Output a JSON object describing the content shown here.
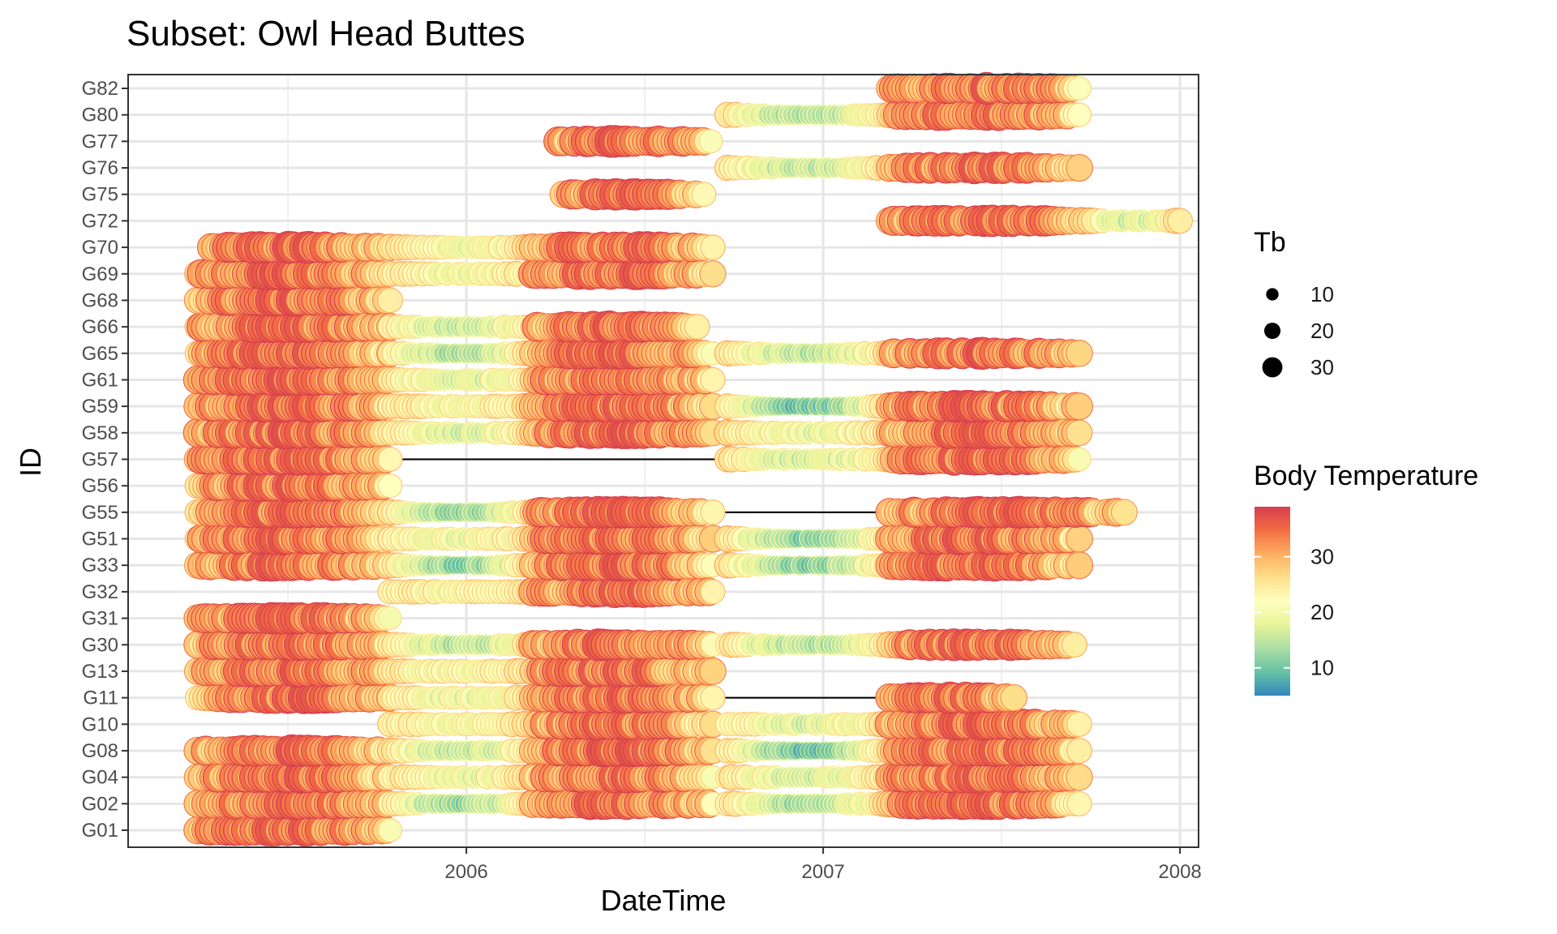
{
  "chart_data": {
    "type": "scatter",
    "title": "Subset: Owl Head Buttes",
    "xlabel": "DateTime",
    "ylabel": "ID",
    "x_ticks": [
      "2006",
      "2007",
      "2008"
    ],
    "xlim": [
      "2005-01-20",
      "2008-01-20"
    ],
    "y_categories": [
      "G01",
      "G02",
      "G04",
      "G08",
      "G10",
      "G11",
      "G13",
      "G30",
      "G31",
      "G32",
      "G33",
      "G51",
      "G55",
      "G56",
      "G57",
      "G58",
      "G59",
      "G61",
      "G65",
      "G66",
      "G68",
      "G69",
      "G70",
      "G72",
      "G75",
      "G76",
      "G77",
      "G80",
      "G82"
    ],
    "grid": true,
    "legend_position": "right",
    "size_legend": {
      "title": "Tb",
      "values": [
        10,
        20,
        30
      ]
    },
    "color_legend": {
      "title": "Body Temperature",
      "ticks": [
        10,
        20,
        30
      ],
      "range": [
        5,
        39
      ],
      "palette": [
        "#3288bd",
        "#66c2a5",
        "#abdda4",
        "#e6f598",
        "#ffffbf",
        "#fee08b",
        "#fdae61",
        "#f46d43",
        "#d53e4f"
      ]
    },
    "series": [
      {
        "id": "G01",
        "segments": [
          {
            "start": "2005-04-01",
            "end": "2005-10-15",
            "profile": "summer"
          }
        ],
        "gaps": []
      },
      {
        "id": "G02",
        "segments": [
          {
            "start": "2005-04-01",
            "end": "2005-10-15",
            "profile": "summer"
          },
          {
            "start": "2005-10-15",
            "end": "2006-03-10",
            "profile": "winter",
            "min": 12
          },
          {
            "start": "2006-03-10",
            "end": "2006-09-10",
            "profile": "summer"
          },
          {
            "start": "2006-09-25",
            "end": "2007-03-10",
            "profile": "winter",
            "min": 13
          },
          {
            "start": "2007-03-10",
            "end": "2007-09-20",
            "profile": "summer"
          }
        ],
        "gaps": [
          [
            "2006-09-10",
            "2006-09-25"
          ]
        ]
      },
      {
        "id": "G04",
        "segments": [
          {
            "start": "2005-04-01",
            "end": "2005-10-15",
            "profile": "summer"
          },
          {
            "start": "2005-10-15",
            "end": "2006-03-10",
            "profile": "winter",
            "min": 18
          },
          {
            "start": "2006-03-10",
            "end": "2006-09-10",
            "profile": "summer"
          },
          {
            "start": "2006-09-25",
            "end": "2007-03-10",
            "profile": "winter",
            "min": 16
          },
          {
            "start": "2007-03-10",
            "end": "2007-09-20",
            "profile": "summer"
          }
        ],
        "gaps": [
          [
            "2006-09-10",
            "2006-09-25"
          ]
        ]
      },
      {
        "id": "G08",
        "segments": [
          {
            "start": "2005-04-01",
            "end": "2005-10-15",
            "profile": "summer"
          },
          {
            "start": "2005-10-15",
            "end": "2006-03-10",
            "profile": "winter",
            "min": 14
          },
          {
            "start": "2006-03-10",
            "end": "2006-09-10",
            "profile": "summer"
          },
          {
            "start": "2006-09-25",
            "end": "2007-03-10",
            "profile": "winter",
            "min": 9
          },
          {
            "start": "2007-03-10",
            "end": "2007-09-20",
            "profile": "summer"
          }
        ],
        "gaps": [
          [
            "2006-09-10",
            "2006-09-25"
          ]
        ]
      },
      {
        "id": "G10",
        "segments": [
          {
            "start": "2005-10-15",
            "end": "2006-03-10",
            "profile": "winter",
            "min": 20
          },
          {
            "start": "2006-03-10",
            "end": "2006-09-10",
            "profile": "summer"
          },
          {
            "start": "2006-09-25",
            "end": "2007-03-10",
            "profile": "winter",
            "min": 17
          },
          {
            "start": "2007-03-10",
            "end": "2007-09-20",
            "profile": "summer"
          }
        ],
        "gaps": []
      },
      {
        "id": "G11",
        "segments": [
          {
            "start": "2005-04-01",
            "end": "2005-10-15",
            "profile": "summer"
          },
          {
            "start": "2005-10-15",
            "end": "2006-03-10",
            "profile": "winter",
            "min": 18
          },
          {
            "start": "2006-03-10",
            "end": "2006-09-10",
            "profile": "summer"
          },
          {
            "start": "2007-03-10",
            "end": "2007-07-15",
            "profile": "summer"
          }
        ],
        "gaps": [
          [
            "2006-09-10",
            "2007-03-10"
          ]
        ]
      },
      {
        "id": "G13",
        "segments": [
          {
            "start": "2005-04-01",
            "end": "2005-10-15",
            "profile": "summer"
          },
          {
            "start": "2005-10-15",
            "end": "2006-03-10",
            "profile": "winter",
            "min": 20
          },
          {
            "start": "2006-03-10",
            "end": "2006-09-10",
            "profile": "summer"
          }
        ],
        "gaps": []
      },
      {
        "id": "G30",
        "segments": [
          {
            "start": "2005-04-01",
            "end": "2005-10-15",
            "profile": "summer"
          },
          {
            "start": "2005-10-15",
            "end": "2006-03-10",
            "profile": "winter",
            "min": 14
          },
          {
            "start": "2006-03-10",
            "end": "2006-09-10",
            "profile": "summer"
          },
          {
            "start": "2006-09-25",
            "end": "2007-03-10",
            "profile": "winter",
            "min": 13
          },
          {
            "start": "2007-03-10",
            "end": "2007-09-15",
            "profile": "summer"
          }
        ],
        "gaps": [
          [
            "2006-09-10",
            "2006-09-25"
          ]
        ]
      },
      {
        "id": "G31",
        "segments": [
          {
            "start": "2005-04-01",
            "end": "2005-10-15",
            "profile": "summer"
          }
        ],
        "gaps": []
      },
      {
        "id": "G32",
        "segments": [
          {
            "start": "2005-10-15",
            "end": "2006-03-10",
            "profile": "winter",
            "min": 20
          },
          {
            "start": "2006-03-10",
            "end": "2006-09-10",
            "profile": "summer"
          }
        ],
        "gaps": []
      },
      {
        "id": "G33",
        "segments": [
          {
            "start": "2005-04-01",
            "end": "2005-10-15",
            "profile": "summer"
          },
          {
            "start": "2005-10-15",
            "end": "2006-03-10",
            "profile": "winter",
            "min": 11
          },
          {
            "start": "2006-03-10",
            "end": "2006-09-10",
            "profile": "summer"
          },
          {
            "start": "2006-09-25",
            "end": "2007-03-10",
            "profile": "winter",
            "min": 11
          },
          {
            "start": "2007-03-10",
            "end": "2007-09-20",
            "profile": "summer"
          }
        ],
        "gaps": [
          [
            "2006-09-10",
            "2006-09-25"
          ]
        ]
      },
      {
        "id": "G51",
        "segments": [
          {
            "start": "2005-04-01",
            "end": "2005-10-15",
            "profile": "summer"
          },
          {
            "start": "2005-10-15",
            "end": "2006-03-10",
            "profile": "winter",
            "min": 18
          },
          {
            "start": "2006-03-10",
            "end": "2006-09-10",
            "profile": "summer"
          },
          {
            "start": "2006-09-25",
            "end": "2007-03-10",
            "profile": "winter",
            "min": 11
          },
          {
            "start": "2007-03-10",
            "end": "2007-09-20",
            "profile": "summer"
          }
        ],
        "gaps": [
          [
            "2006-09-10",
            "2006-09-25"
          ]
        ]
      },
      {
        "id": "G55",
        "segments": [
          {
            "start": "2005-04-01",
            "end": "2005-10-15",
            "profile": "summer"
          },
          {
            "start": "2005-10-15",
            "end": "2006-03-10",
            "profile": "winter",
            "min": 12
          },
          {
            "start": "2006-03-10",
            "end": "2006-09-10",
            "profile": "summer"
          },
          {
            "start": "2007-03-10",
            "end": "2007-11-05",
            "profile": "summer"
          }
        ],
        "gaps": [
          [
            "2006-09-10",
            "2007-03-10"
          ]
        ]
      },
      {
        "id": "G56",
        "segments": [
          {
            "start": "2005-04-01",
            "end": "2005-10-15",
            "profile": "summer"
          }
        ],
        "gaps": []
      },
      {
        "id": "G57",
        "segments": [
          {
            "start": "2005-04-01",
            "end": "2005-10-15",
            "profile": "summer"
          },
          {
            "start": "2006-09-25",
            "end": "2007-03-10",
            "profile": "winter",
            "min": 16
          },
          {
            "start": "2007-03-10",
            "end": "2007-09-20",
            "profile": "summer"
          }
        ],
        "gaps": [
          [
            "2005-10-15",
            "2006-09-25"
          ]
        ]
      },
      {
        "id": "G58",
        "segments": [
          {
            "start": "2005-04-01",
            "end": "2005-10-15",
            "profile": "summer"
          },
          {
            "start": "2005-10-15",
            "end": "2006-03-10",
            "profile": "winter",
            "min": 16
          },
          {
            "start": "2006-03-10",
            "end": "2006-09-10",
            "profile": "summer"
          },
          {
            "start": "2006-09-25",
            "end": "2007-03-10",
            "profile": "winter",
            "min": 18
          },
          {
            "start": "2007-03-10",
            "end": "2007-09-20",
            "profile": "summer"
          }
        ],
        "gaps": [
          [
            "2006-09-10",
            "2006-09-25"
          ]
        ]
      },
      {
        "id": "G59",
        "segments": [
          {
            "start": "2005-04-01",
            "end": "2005-10-15",
            "profile": "summer"
          },
          {
            "start": "2005-10-15",
            "end": "2006-03-10",
            "profile": "winter",
            "min": 20
          },
          {
            "start": "2006-03-10",
            "end": "2006-09-10",
            "profile": "summer"
          },
          {
            "start": "2006-09-25",
            "end": "2007-03-10",
            "profile": "winter",
            "min": 9
          },
          {
            "start": "2007-03-10",
            "end": "2007-09-20",
            "profile": "summer"
          }
        ],
        "gaps": []
      },
      {
        "id": "G61",
        "segments": [
          {
            "start": "2005-04-01",
            "end": "2005-10-15",
            "profile": "summer"
          },
          {
            "start": "2005-10-15",
            "end": "2006-03-10",
            "profile": "winter",
            "min": 17
          },
          {
            "start": "2006-03-10",
            "end": "2006-09-10",
            "profile": "summer"
          }
        ],
        "gaps": []
      },
      {
        "id": "G65",
        "segments": [
          {
            "start": "2005-04-01",
            "end": "2005-10-15",
            "profile": "summer"
          },
          {
            "start": "2005-10-15",
            "end": "2006-03-10",
            "profile": "winter",
            "min": 13
          },
          {
            "start": "2006-03-10",
            "end": "2006-09-10",
            "profile": "summer"
          },
          {
            "start": "2006-09-25",
            "end": "2007-03-10",
            "profile": "winter",
            "min": 14
          },
          {
            "start": "2007-03-10",
            "end": "2007-09-20",
            "profile": "summer"
          }
        ],
        "gaps": []
      },
      {
        "id": "G66",
        "segments": [
          {
            "start": "2005-04-01",
            "end": "2005-10-15",
            "profile": "summer"
          },
          {
            "start": "2005-10-15",
            "end": "2006-03-10",
            "profile": "winter",
            "min": 15
          },
          {
            "start": "2006-03-10",
            "end": "2006-08-25",
            "profile": "summer"
          }
        ],
        "gaps": []
      },
      {
        "id": "G68",
        "segments": [
          {
            "start": "2005-04-01",
            "end": "2005-10-15",
            "profile": "summer"
          }
        ],
        "gaps": []
      },
      {
        "id": "G69",
        "segments": [
          {
            "start": "2005-04-01",
            "end": "2005-10-15",
            "profile": "summer"
          },
          {
            "start": "2005-10-15",
            "end": "2006-03-10",
            "profile": "winter",
            "min": 19
          },
          {
            "start": "2006-03-10",
            "end": "2006-09-10",
            "profile": "summer"
          }
        ],
        "gaps": []
      },
      {
        "id": "G70",
        "segments": [
          {
            "start": "2005-04-15",
            "end": "2005-10-15",
            "profile": "summer"
          },
          {
            "start": "2005-10-15",
            "end": "2006-03-10",
            "profile": "winter",
            "min": 19
          },
          {
            "start": "2006-03-10",
            "end": "2006-09-10",
            "profile": "summer"
          }
        ],
        "gaps": []
      },
      {
        "id": "G72",
        "segments": [
          {
            "start": "2007-03-10",
            "end": "2007-10-01",
            "profile": "summer"
          },
          {
            "start": "2007-10-01",
            "end": "2008-01-01",
            "profile": "winter",
            "min": 16
          }
        ],
        "gaps": []
      },
      {
        "id": "G75",
        "segments": [
          {
            "start": "2006-04-10",
            "end": "2006-09-01",
            "profile": "summer"
          }
        ],
        "gaps": []
      },
      {
        "id": "G76",
        "segments": [
          {
            "start": "2006-09-25",
            "end": "2007-03-10",
            "profile": "winter",
            "min": 14
          },
          {
            "start": "2007-03-10",
            "end": "2007-09-20",
            "profile": "summer"
          }
        ],
        "gaps": []
      },
      {
        "id": "G77",
        "segments": [
          {
            "start": "2006-04-05",
            "end": "2006-09-08",
            "profile": "summer"
          }
        ],
        "gaps": []
      },
      {
        "id": "G80",
        "segments": [
          {
            "start": "2006-09-25",
            "end": "2007-03-10",
            "profile": "winter",
            "min": 13
          },
          {
            "start": "2007-03-10",
            "end": "2007-09-20",
            "profile": "summer"
          }
        ],
        "gaps": []
      },
      {
        "id": "G82",
        "segments": [
          {
            "start": "2007-03-10",
            "end": "2007-09-20",
            "profile": "summer"
          }
        ],
        "gaps": []
      }
    ]
  }
}
